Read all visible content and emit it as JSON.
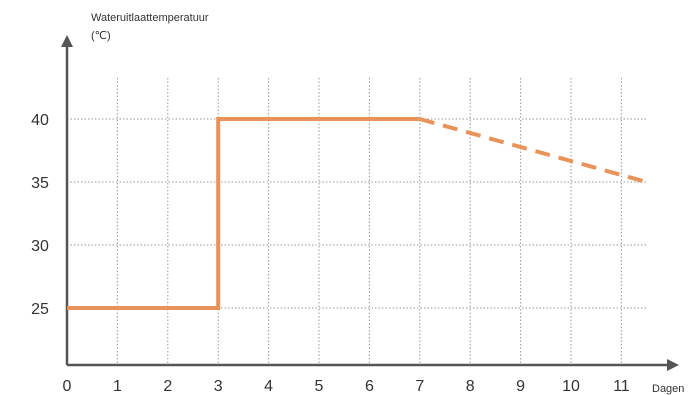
{
  "chart_data": {
    "type": "line",
    "ylabel_line1": "Wateruitlaattemperatuur",
    "ylabel_line2": "(℃)",
    "xlabel": "Dagen",
    "x_ticks": [
      0,
      1,
      2,
      3,
      4,
      5,
      6,
      7,
      8,
      9,
      10,
      11
    ],
    "y_ticks": [
      25,
      30,
      35,
      40
    ],
    "xlim": [
      0,
      12
    ],
    "ylim": [
      20,
      47
    ],
    "grid": true,
    "series_color": "#E8935A",
    "axis_color": "#555555",
    "series": [
      {
        "style": "solid",
        "points": [
          [
            0,
            25
          ],
          [
            3,
            25
          ],
          [
            3,
            40
          ],
          [
            7,
            40
          ]
        ]
      },
      {
        "style": "dashed",
        "points": [
          [
            7,
            40
          ],
          [
            11.5,
            35
          ]
        ]
      }
    ]
  }
}
